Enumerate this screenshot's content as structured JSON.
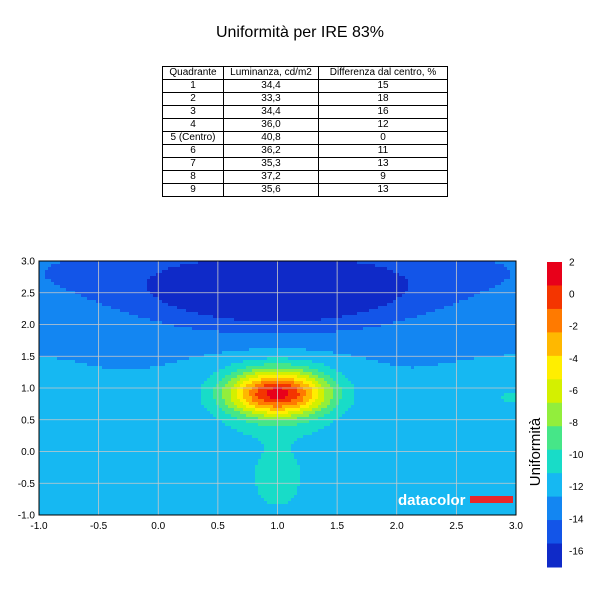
{
  "title": "Uniformità per IRE 83%",
  "table": {
    "headers": [
      "Quadrante",
      "Luminanza, cd/m2",
      "Differenza dal centro, %"
    ],
    "rows": [
      [
        "1",
        "34,4",
        "15"
      ],
      [
        "2",
        "33,3",
        "18"
      ],
      [
        "3",
        "34,4",
        "16"
      ],
      [
        "4",
        "36,0",
        "12"
      ],
      [
        "5 (Centro)",
        "40,8",
        "0"
      ],
      [
        "6",
        "36,2",
        "11"
      ],
      [
        "7",
        "35,3",
        "13"
      ],
      [
        "8",
        "37,2",
        "9"
      ],
      [
        "9",
        "35,6",
        "13"
      ]
    ]
  },
  "colorbar": {
    "label": "Uniformità",
    "ticks": [
      "2",
      "0",
      "-2",
      "-4",
      "-6",
      "-8",
      "-10",
      "-12",
      "-14",
      "-16"
    ],
    "colors": [
      "#e8001a",
      "#f43500",
      "#ff7a00",
      "#ffb800",
      "#ffee00",
      "#d4f000",
      "#92ee3c",
      "#46e688",
      "#18dcc8",
      "#16b8f2",
      "#1386f2",
      "#1355e8",
      "#0f2ac8"
    ]
  },
  "logo": "datacolor",
  "chart_data": {
    "type": "heatmap",
    "title": "Uniformità per IRE 83%",
    "xlabel": "",
    "ylabel": "",
    "xlim": [
      -1.0,
      3.0
    ],
    "ylim": [
      -1.0,
      3.0
    ],
    "x_ticks": [
      "-1.0",
      "-0.5",
      "0.0",
      "0.5",
      "1.0",
      "1.5",
      "2.0",
      "2.5",
      "3.0"
    ],
    "y_ticks": [
      "3.0",
      "2.5",
      "2.0",
      "1.5",
      "1.0",
      "0.5",
      "0.0",
      "-0.5",
      "-1.0"
    ],
    "grid": true,
    "colorbar_range": [
      -17,
      2
    ],
    "legend": "right",
    "quadrants": [
      {
        "quadrant": "1",
        "luminance": 34.4,
        "difference_pct": 15
      },
      {
        "quadrant": "2",
        "luminance": 33.3,
        "difference_pct": 18
      },
      {
        "quadrant": "3",
        "luminance": 34.4,
        "difference_pct": 16
      },
      {
        "quadrant": "4",
        "luminance": 36.0,
        "difference_pct": 12
      },
      {
        "quadrant": "5 (Centro)",
        "luminance": 40.8,
        "difference_pct": 0
      },
      {
        "quadrant": "6",
        "luminance": 36.2,
        "difference_pct": 11
      },
      {
        "quadrant": "7",
        "luminance": 35.3,
        "difference_pct": 13
      },
      {
        "quadrant": "8",
        "luminance": 37.2,
        "difference_pct": 9
      },
      {
        "quadrant": "9",
        "luminance": 35.6,
        "difference_pct": 13
      }
    ]
  }
}
